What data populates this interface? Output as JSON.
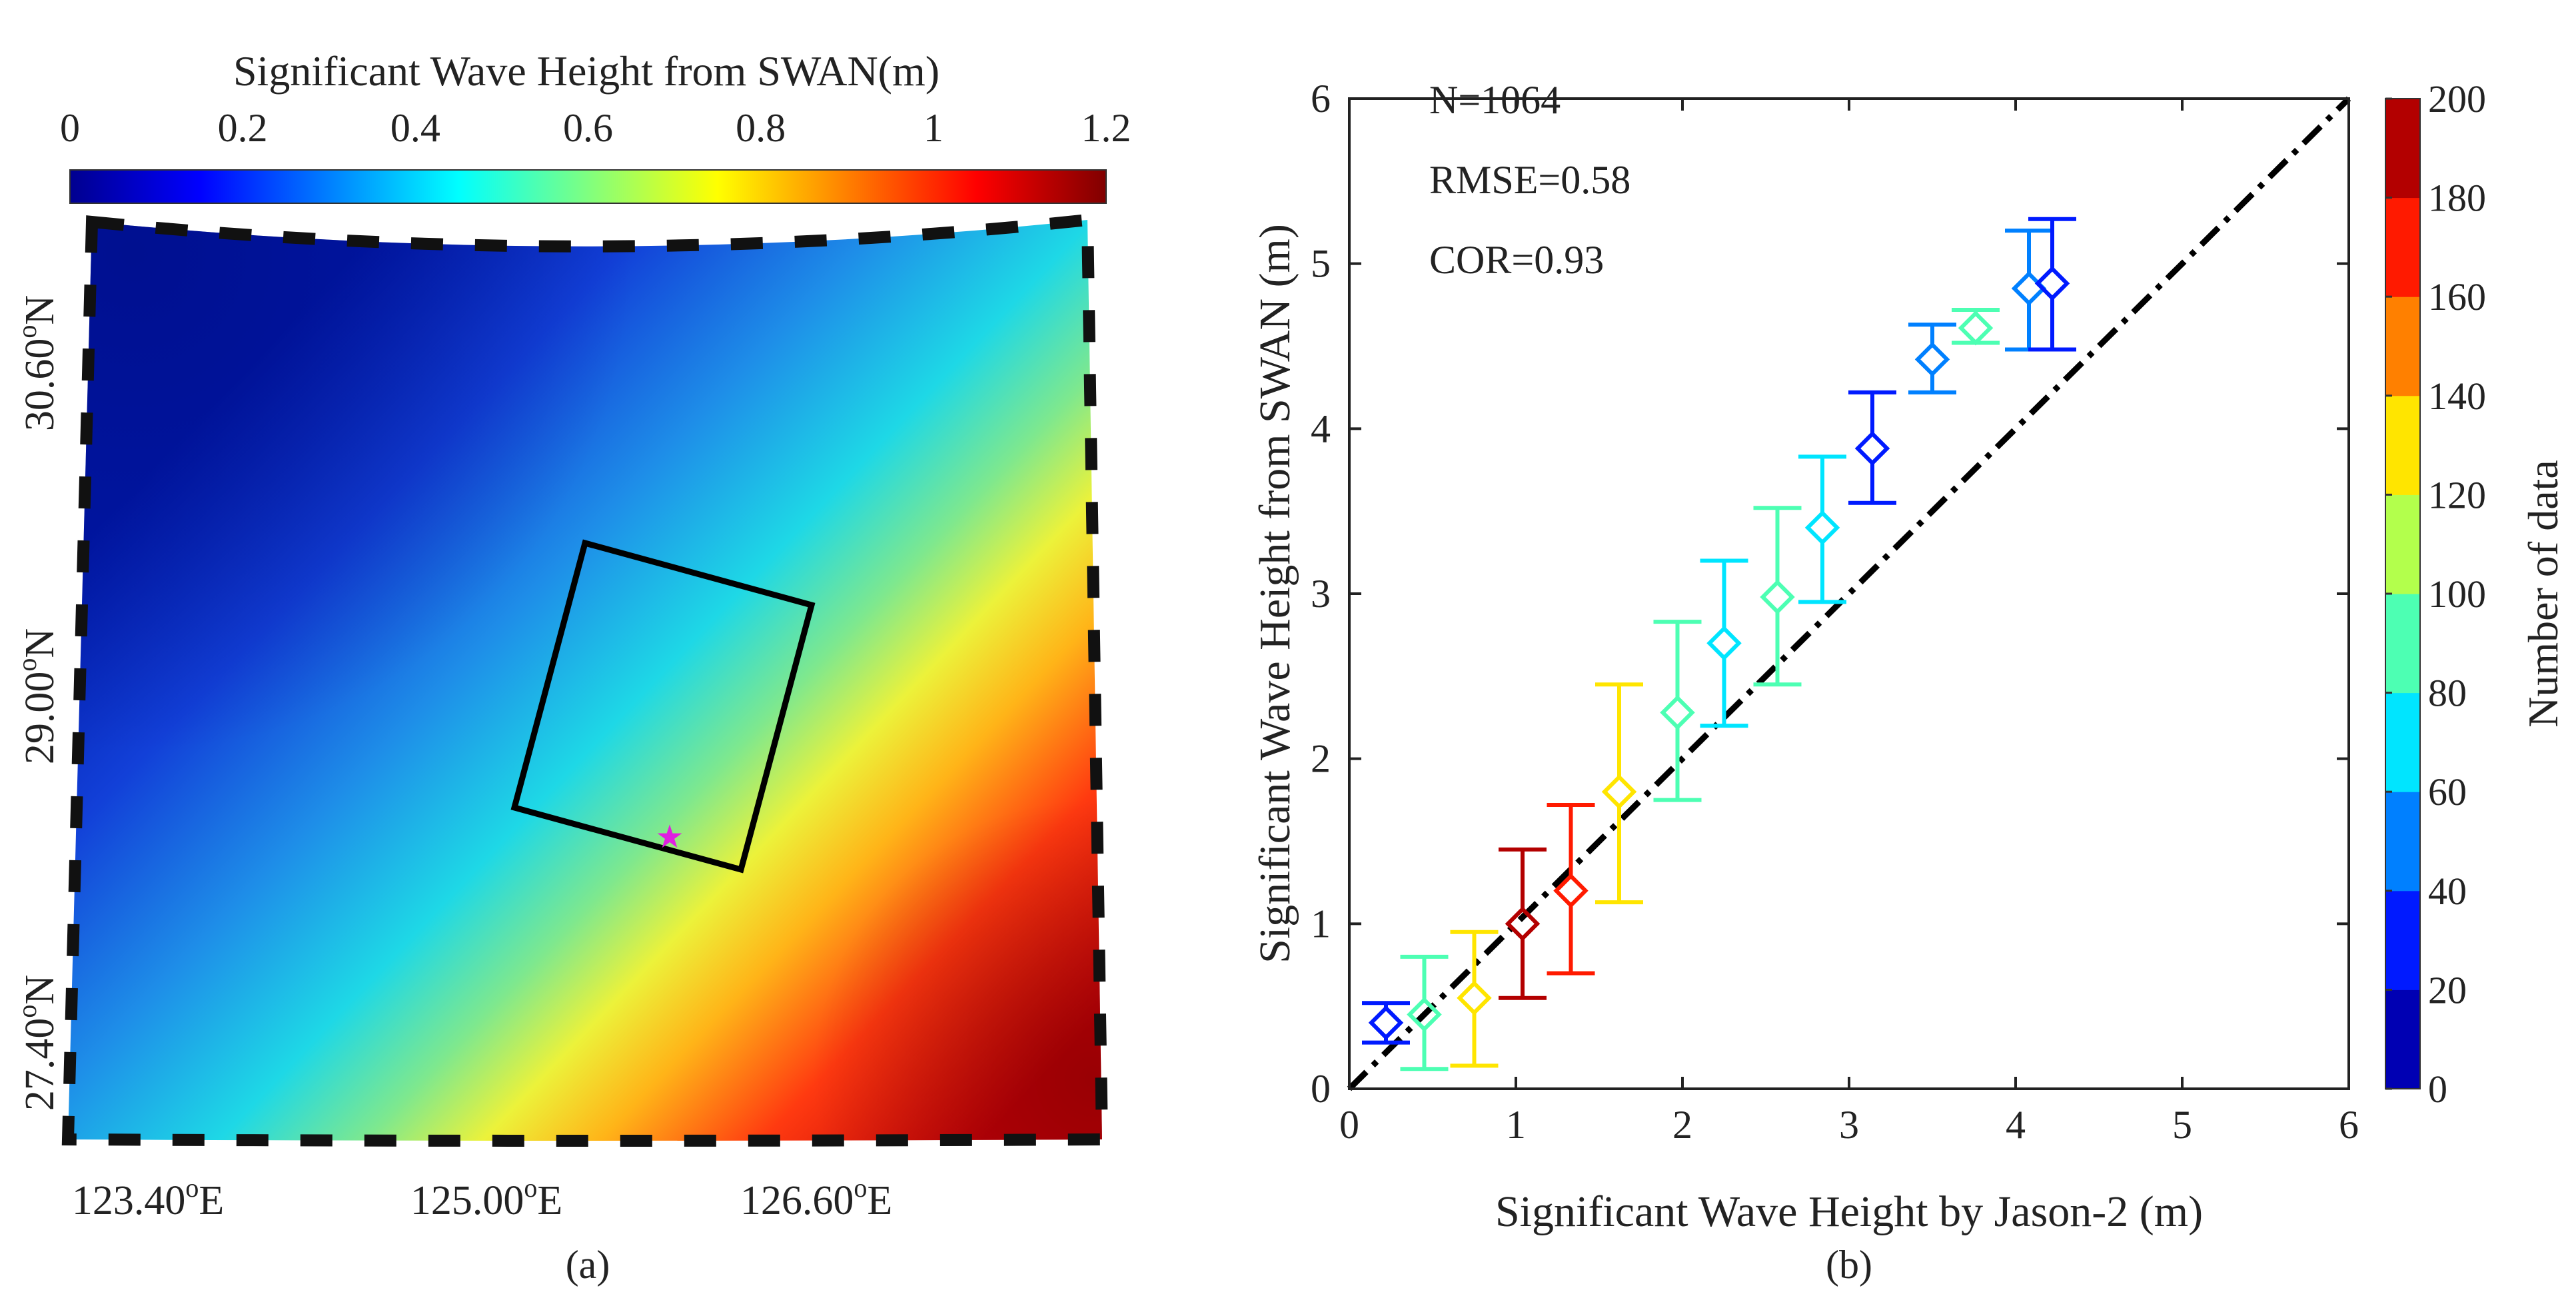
{
  "chart_data": [
    {
      "panel": "(a)",
      "type": "heatmap",
      "title": "Significant Wave Height from SWAN(m)",
      "colorbar": {
        "range": [
          0,
          1.2
        ],
        "ticks": [
          "0",
          "0.2",
          "0.4",
          "0.6",
          "0.8",
          "1",
          "1.2"
        ],
        "orientation": "horizontal"
      },
      "x_tick_labels": [
        "123.40",
        "125.00",
        "126.60"
      ],
      "y_tick_labels": [
        "30.60",
        "29.00",
        "27.40"
      ],
      "degree_symbol": "o",
      "east_suffix": "E",
      "north_suffix": "N",
      "annotations": [
        "black rotated square study area",
        "magenta star station marker"
      ],
      "caption": "(a)"
    },
    {
      "panel": "(b)",
      "type": "scatter",
      "xlabel": "Significant Wave Height by Jason-2 (m)",
      "ylabel": "Significant Wave Height from SWAN (m)",
      "xlim": [
        0,
        6
      ],
      "ylim": [
        0,
        6
      ],
      "x_ticks": [
        "0",
        "1",
        "2",
        "3",
        "4",
        "5",
        "6"
      ],
      "y_ticks": [
        "0",
        "1",
        "2",
        "3",
        "4",
        "5",
        "6"
      ],
      "stats": [
        "N=1064",
        "RMSE=0.58",
        "COR=0.93"
      ],
      "reference_line": "1:1",
      "colorbar": {
        "label": "Number of data",
        "range": [
          0,
          200
        ],
        "ticks": [
          "0",
          "20",
          "40",
          "60",
          "80",
          "100",
          "120",
          "140",
          "160",
          "180",
          "200"
        ]
      },
      "points": [
        {
          "x": 0.22,
          "y": 0.4,
          "low": 0.28,
          "high": 0.52,
          "count": 30
        },
        {
          "x": 0.45,
          "y": 0.45,
          "low": 0.12,
          "high": 0.8,
          "count": 90
        },
        {
          "x": 0.75,
          "y": 0.55,
          "low": 0.14,
          "high": 0.95,
          "count": 130
        },
        {
          "x": 1.04,
          "y": 1.0,
          "low": 0.55,
          "high": 1.45,
          "count": 190
        },
        {
          "x": 1.33,
          "y": 1.2,
          "low": 0.7,
          "high": 1.72,
          "count": 170
        },
        {
          "x": 1.62,
          "y": 1.8,
          "low": 1.13,
          "high": 2.45,
          "count": 120
        },
        {
          "x": 1.97,
          "y": 2.28,
          "low": 1.75,
          "high": 2.83,
          "count": 95
        },
        {
          "x": 2.25,
          "y": 2.7,
          "low": 2.2,
          "high": 3.2,
          "count": 70
        },
        {
          "x": 2.57,
          "y": 2.98,
          "low": 2.45,
          "high": 3.52,
          "count": 90
        },
        {
          "x": 2.84,
          "y": 3.4,
          "low": 2.95,
          "high": 3.83,
          "count": 70
        },
        {
          "x": 3.14,
          "y": 3.88,
          "low": 3.55,
          "high": 4.22,
          "count": 30
        },
        {
          "x": 3.5,
          "y": 4.42,
          "low": 4.22,
          "high": 4.63,
          "count": 50
        },
        {
          "x": 3.76,
          "y": 4.61,
          "low": 4.52,
          "high": 4.72,
          "count": 85
        },
        {
          "x": 4.08,
          "y": 4.85,
          "low": 4.48,
          "high": 5.2,
          "count": 40
        },
        {
          "x": 4.22,
          "y": 4.88,
          "low": 4.48,
          "high": 5.27,
          "count": 25
        }
      ],
      "caption": "(b)"
    }
  ]
}
